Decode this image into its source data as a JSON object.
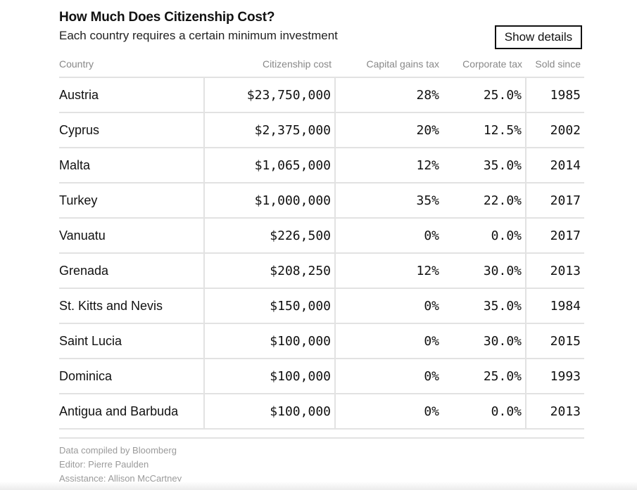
{
  "title": "How Much Does Citizenship Cost?",
  "subtitle": "Each country requires a certain minimum investment",
  "button_label": "Show details",
  "chart_data": {
    "type": "table",
    "columns": [
      "Country",
      "Citizenship cost",
      "Capital gains tax",
      "Corporate tax",
      "Sold since"
    ],
    "rows": [
      [
        "Austria",
        "$23,750,000",
        "28%",
        "25.0%",
        "1985"
      ],
      [
        "Cyprus",
        "$2,375,000",
        "20%",
        "12.5%",
        "2002"
      ],
      [
        "Malta",
        "$1,065,000",
        "12%",
        "35.0%",
        "2014"
      ],
      [
        "Turkey",
        "$1,000,000",
        "35%",
        "22.0%",
        "2017"
      ],
      [
        "Vanuatu",
        "$226,500",
        "0%",
        "0.0%",
        "2017"
      ],
      [
        "Grenada",
        "$208,250",
        "12%",
        "30.0%",
        "2013"
      ],
      [
        "St. Kitts and Nevis",
        "$150,000",
        "0%",
        "35.0%",
        "1984"
      ],
      [
        "Saint Lucia",
        "$100,000",
        "0%",
        "30.0%",
        "2015"
      ],
      [
        "Dominica",
        "$100,000",
        "0%",
        "25.0%",
        "1993"
      ],
      [
        "Antigua and Barbuda",
        "$100,000",
        "0%",
        "0.0%",
        "2013"
      ]
    ]
  },
  "footer": {
    "source": "Data compiled by Bloomberg",
    "editor": "Editor: Pierre Paulden",
    "assistance": "Assistance: Allison McCartney"
  }
}
